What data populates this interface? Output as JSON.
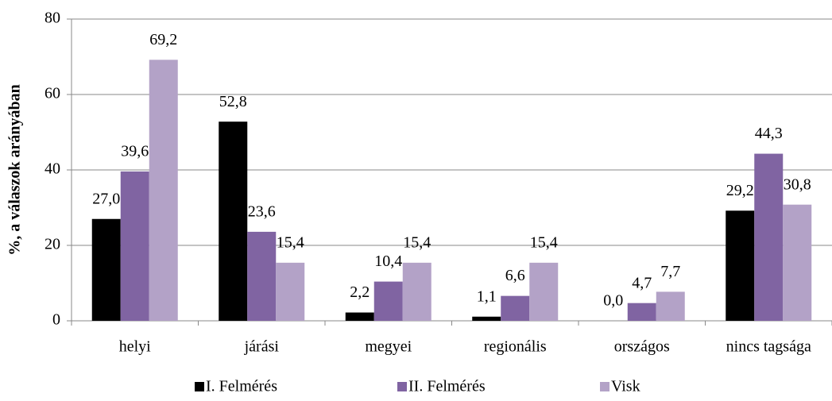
{
  "chart_data": {
    "type": "bar",
    "y_label": "%, a válaszok arányában",
    "categories": [
      "helyi",
      "járási",
      "megyei",
      "regionális",
      "országos",
      "nincs tagsága"
    ],
    "series": [
      {
        "name": "I. Felmérés",
        "color": "#000000",
        "values": [
          27.0,
          52.8,
          2.2,
          1.1,
          0.0,
          29.2
        ],
        "value_labels": [
          "27,0",
          "52,8",
          "2,2",
          "1,1",
          "0,0",
          "29,2"
        ]
      },
      {
        "name": "II. Felmérés",
        "color": "#8064a2",
        "values": [
          39.6,
          23.6,
          10.4,
          6.6,
          4.7,
          44.3
        ],
        "value_labels": [
          "39,6",
          "23,6",
          "10,4",
          "6,6",
          "4,7",
          "44,3"
        ]
      },
      {
        "name": "Visk",
        "color": "#b3a2c7",
        "values": [
          69.2,
          15.4,
          15.4,
          15.4,
          7.7,
          30.8
        ],
        "value_labels": [
          "69,2",
          "15,4",
          "15,4",
          "15,4",
          "7,7",
          "30,8"
        ]
      }
    ],
    "ylim": [
      0,
      80
    ],
    "yticks": [
      0,
      20,
      40,
      60,
      80
    ],
    "grid": true,
    "legend": "bottom"
  }
}
